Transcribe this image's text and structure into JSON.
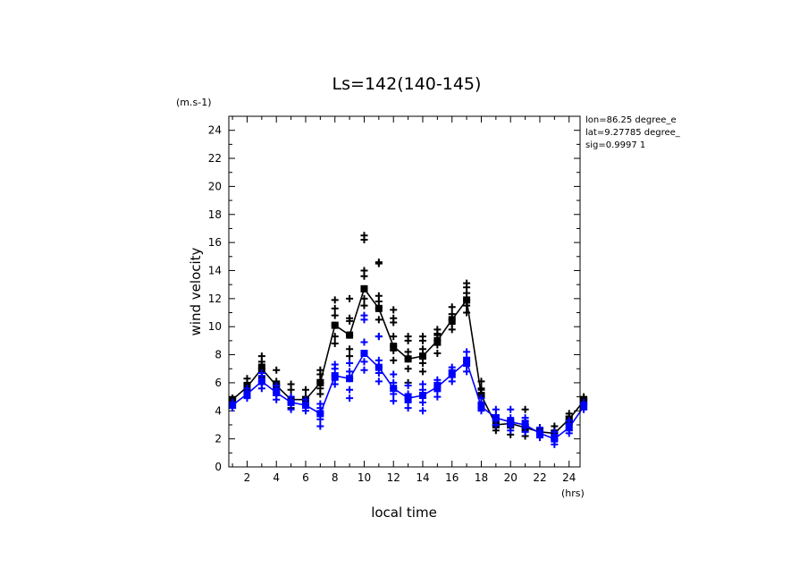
{
  "chart_data": {
    "type": "line",
    "title": "Ls=142(140-145)",
    "xlabel": "local time",
    "ylabel": "wind velocity",
    "x_unit": "(hrs)",
    "y_unit": "(m.s-1)",
    "xlim": [
      0.75,
      24.75
    ],
    "ylim": [
      0,
      25
    ],
    "x_ticks": [
      "2",
      "4",
      "6",
      "8",
      "10",
      "12",
      "14",
      "16",
      "18",
      "20",
      "22",
      "24"
    ],
    "y_ticks": [
      "0",
      "2",
      "4",
      "6",
      "8",
      "10",
      "12",
      "14",
      "16",
      "18",
      "20",
      "22",
      "24"
    ],
    "info_lines": [
      "lon=86.25 degree_e",
      "lat=9.27785 degree_",
      "sig=0.9997 1"
    ],
    "colors": {
      "series_black": "#000000",
      "series_blue": "#0000ff"
    },
    "x": [
      1,
      2,
      3,
      4,
      5,
      6,
      7,
      8,
      9,
      10,
      11,
      12,
      13,
      14,
      15,
      16,
      17,
      18,
      19,
      20,
      21,
      22,
      23,
      24,
      25
    ],
    "series": [
      {
        "color": "#000000",
        "values": [
          4.8,
          5.7,
          7.0,
          5.8,
          4.8,
          4.8,
          6.0,
          10.1,
          9.4,
          12.7,
          11.3,
          8.6,
          7.7,
          7.9,
          9.0,
          10.5,
          11.9,
          5.1,
          3.0,
          3.1,
          2.8,
          2.5,
          2.4,
          3.4,
          4.7
        ],
        "scatter": [
          [
            4.6,
            4.8,
            4.7,
            4.9,
            4.8
          ],
          [
            5.0,
            5.4,
            5.6,
            5.9,
            6.3,
            6.0
          ],
          [
            6.4,
            6.7,
            7.0,
            7.3,
            7.9,
            7.5
          ],
          [
            5.3,
            5.6,
            5.8,
            6.1,
            6.9,
            5.9
          ],
          [
            4.2,
            4.6,
            4.8,
            5.0,
            5.5,
            5.9
          ],
          [
            4.4,
            4.7,
            4.8,
            5.0,
            5.5,
            4.9
          ],
          [
            5.2,
            5.6,
            6.0,
            6.2,
            6.6,
            6.9
          ],
          [
            8.8,
            9.3,
            10.1,
            10.8,
            11.3,
            11.9
          ],
          [
            7.9,
            8.4,
            9.4,
            10.4,
            10.6,
            12.0
          ],
          [
            11.5,
            12.0,
            12.7,
            13.6,
            14.0,
            16.2,
            16.5
          ],
          [
            9.3,
            10.5,
            11.3,
            11.8,
            12.2,
            14.5,
            14.6
          ],
          [
            7.6,
            8.3,
            8.6,
            9.3,
            10.3,
            11.2,
            10.6
          ],
          [
            6.0,
            7.0,
            7.7,
            8.2,
            9.0,
            9.3
          ],
          [
            6.8,
            7.4,
            7.9,
            8.4,
            9.0,
            9.3
          ],
          [
            8.1,
            8.7,
            9.0,
            9.4,
            9.8,
            9.5
          ],
          [
            9.8,
            10.2,
            10.5,
            10.9,
            11.4
          ],
          [
            11.0,
            11.5,
            11.9,
            12.4,
            12.8,
            13.1
          ],
          [
            4.6,
            5.0,
            5.1,
            5.5,
            5.6,
            6.1
          ],
          [
            2.6,
            2.9,
            3.0,
            3.3,
            3.4
          ],
          [
            2.3,
            2.8,
            3.1,
            3.3,
            3.2
          ],
          [
            2.2,
            2.5,
            2.8,
            3.0,
            4.1
          ],
          [
            2.2,
            2.4,
            2.5,
            2.7,
            2.8
          ],
          [
            2.0,
            2.3,
            2.4,
            2.6,
            2.9
          ],
          [
            3.0,
            3.3,
            3.4,
            3.6,
            3.8
          ],
          [
            4.5,
            4.7,
            4.8,
            4.9,
            5.0
          ]
        ]
      },
      {
        "color": "#0000ff",
        "values": [
          4.4,
          5.2,
          6.1,
          5.3,
          4.6,
          4.4,
          3.8,
          6.5,
          6.3,
          8.1,
          7.1,
          5.6,
          4.9,
          5.1,
          5.7,
          6.6,
          7.5,
          4.3,
          3.5,
          3.2,
          3.0,
          2.4,
          2.0,
          2.8,
          4.3
        ],
        "scatter": [
          [
            4.2,
            4.4,
            4.5,
            4.6
          ],
          [
            4.9,
            5.2,
            5.4,
            5.6
          ],
          [
            5.6,
            5.9,
            6.1,
            6.5,
            6.7
          ],
          [
            4.8,
            5.1,
            5.3,
            5.6,
            5.8
          ],
          [
            4.1,
            4.5,
            4.6,
            4.8,
            5.0
          ],
          [
            4.0,
            4.3,
            4.4,
            4.6,
            4.8
          ],
          [
            2.9,
            3.4,
            3.8,
            4.2,
            4.5
          ],
          [
            5.9,
            6.2,
            6.5,
            7.0,
            7.3
          ],
          [
            4.9,
            5.5,
            6.3,
            6.8,
            7.4
          ],
          [
            6.9,
            7.5,
            8.1,
            8.9,
            10.5,
            10.8
          ],
          [
            6.1,
            6.7,
            7.1,
            7.6,
            9.3
          ],
          [
            4.7,
            5.2,
            5.6,
            6.0,
            6.6
          ],
          [
            4.2,
            4.6,
            4.9,
            5.2,
            5.8
          ],
          [
            4.0,
            4.6,
            5.1,
            5.5,
            5.9
          ],
          [
            5.0,
            5.4,
            5.7,
            6.0,
            6.2
          ],
          [
            6.1,
            6.4,
            6.6,
            6.9,
            7.1
          ],
          [
            6.8,
            7.2,
            7.5,
            7.8,
            8.2
          ],
          [
            4.0,
            4.2,
            4.3,
            4.6,
            4.9
          ],
          [
            3.0,
            3.3,
            3.5,
            3.7,
            4.1
          ],
          [
            2.6,
            2.9,
            3.2,
            3.5,
            4.1
          ],
          [
            2.5,
            2.8,
            3.0,
            3.3,
            3.5
          ],
          [
            2.1,
            2.3,
            2.4,
            2.6,
            2.8
          ],
          [
            1.6,
            1.9,
            2.0,
            2.3,
            2.5
          ],
          [
            2.4,
            2.6,
            2.8,
            3.1,
            3.3
          ],
          [
            4.1,
            4.3,
            4.4,
            4.6
          ]
        ]
      }
    ]
  }
}
